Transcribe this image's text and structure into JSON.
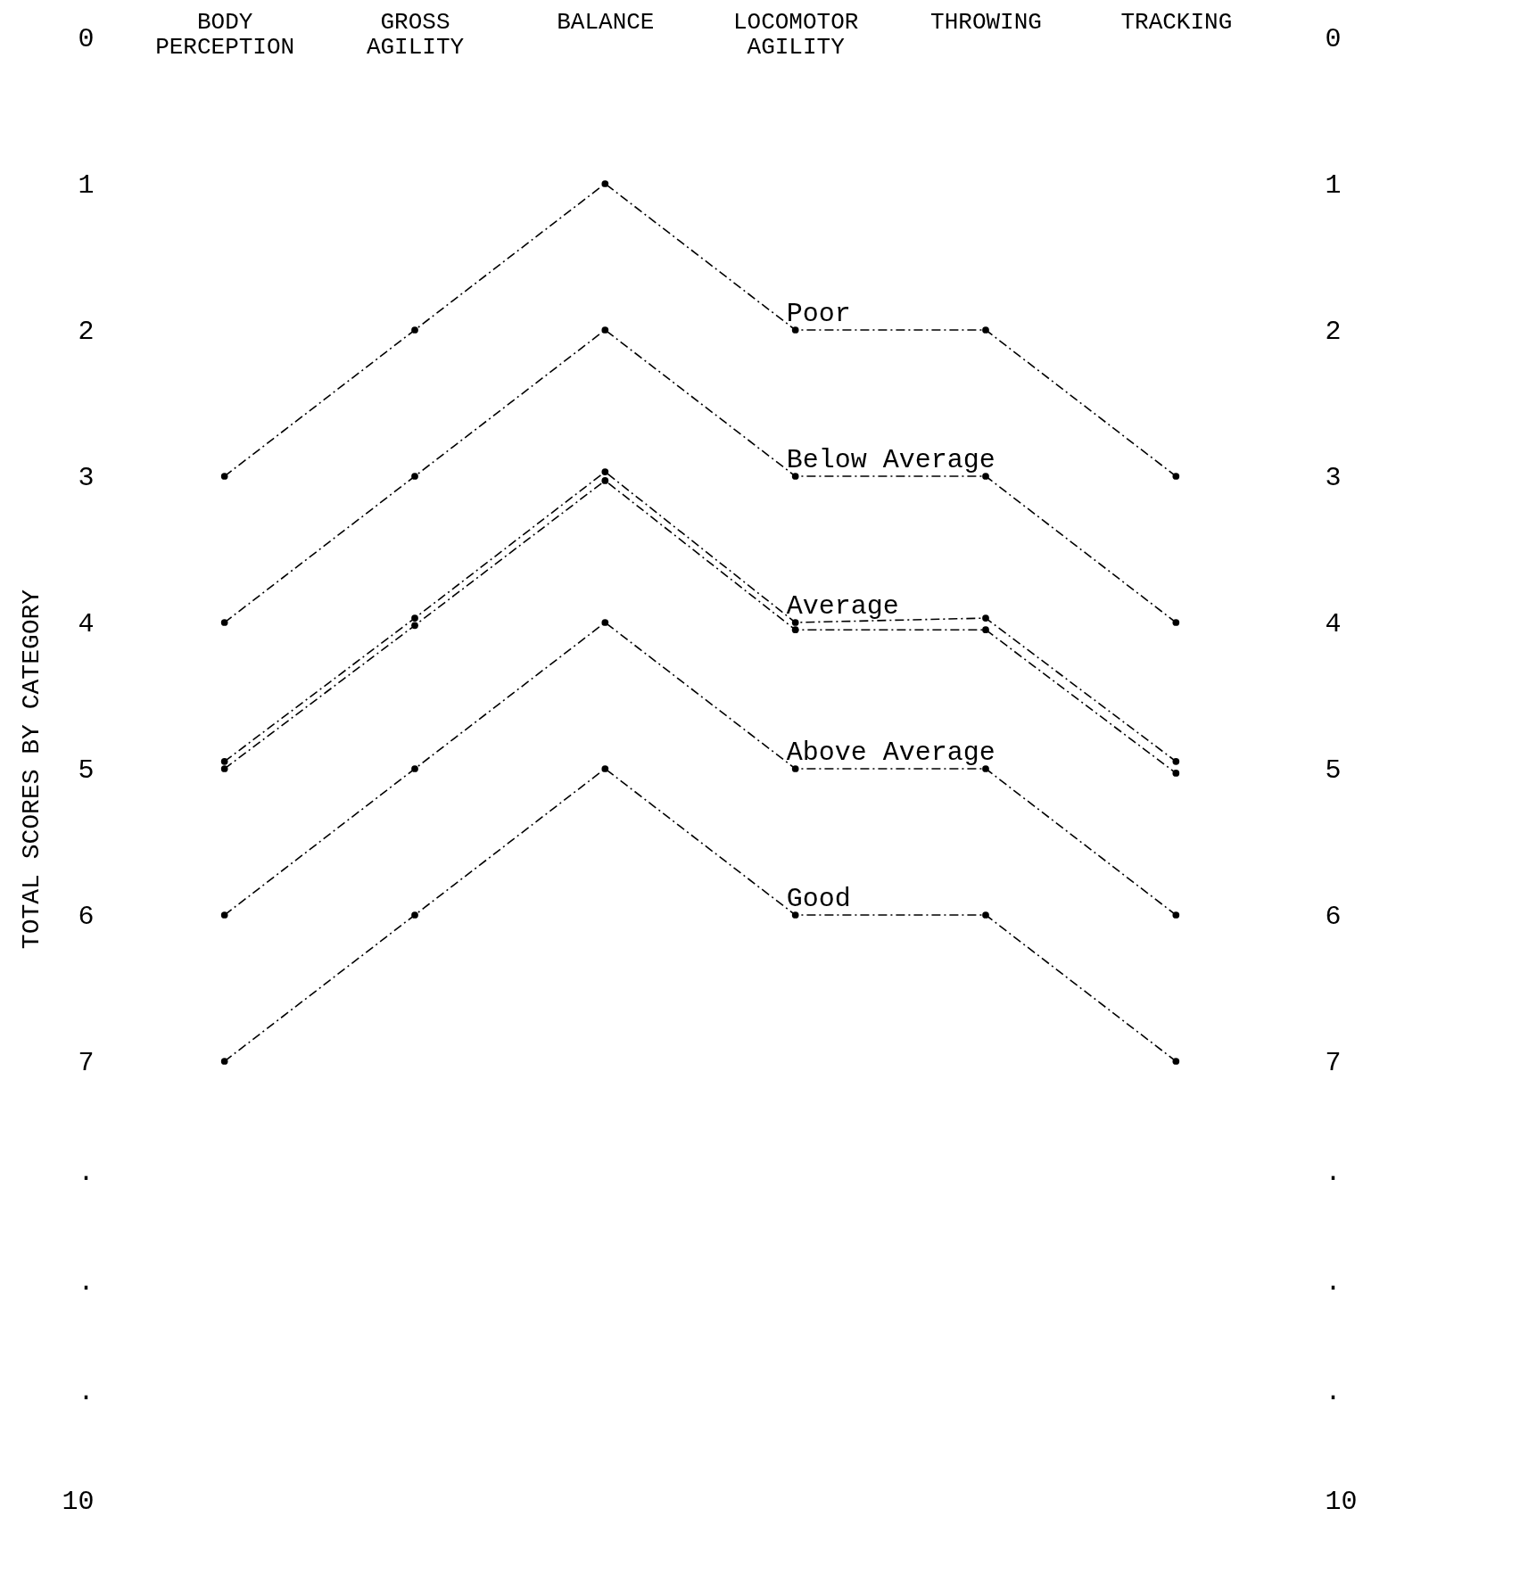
{
  "chart_data": {
    "type": "line",
    "ylabel": "TOTAL SCORES BY CATEGORY",
    "categories": [
      "BODY PERCEPTION",
      "GROSS AGILITY",
      "BALANCE",
      "LOCOMOTOR AGILITY",
      "THROWING",
      "TRACKING"
    ],
    "series": [
      {
        "name": "Poor",
        "color": "#000000",
        "values": [
          3,
          2,
          1,
          2,
          2,
          3
        ]
      },
      {
        "name": "Below Average",
        "color": "#000000",
        "values": [
          4,
          3,
          2,
          3,
          3,
          4
        ]
      },
      {
        "name": "Average",
        "color": "#000000",
        "values": [
          4.95,
          3.97,
          2.97,
          4,
          3.97,
          4.95
        ]
      },
      {
        "color": "#000000",
        "values": [
          5,
          4.02,
          3.03,
          4.05,
          4.05,
          5.03
        ]
      },
      {
        "name": "Above Average",
        "color": "#000000",
        "values": [
          6,
          5,
          4,
          5,
          5,
          6
        ]
      },
      {
        "name": "Good",
        "color": "#000000",
        "values": [
          7,
          6,
          5,
          6,
          6,
          7
        ]
      }
    ],
    "ylim": [
      10,
      0
    ],
    "yticks": [
      0,
      1,
      2,
      3,
      4,
      5,
      6,
      7,
      {
        "value": 7.75,
        "label": "."
      },
      {
        "value": 8.5,
        "label": "."
      },
      {
        "value": 9.25,
        "label": "."
      },
      10
    ],
    "y2lim": [
      10,
      0
    ],
    "y2ticks": [
      0,
      1,
      2,
      3,
      4,
      5,
      6,
      7,
      {
        "value": 7.75,
        "label": "."
      },
      {
        "value": 8.5,
        "label": "."
      },
      {
        "value": 9.25,
        "label": "."
      },
      10
    ],
    "grid": false,
    "legend": false,
    "marker": "circle",
    "line_style": "dashed"
  }
}
